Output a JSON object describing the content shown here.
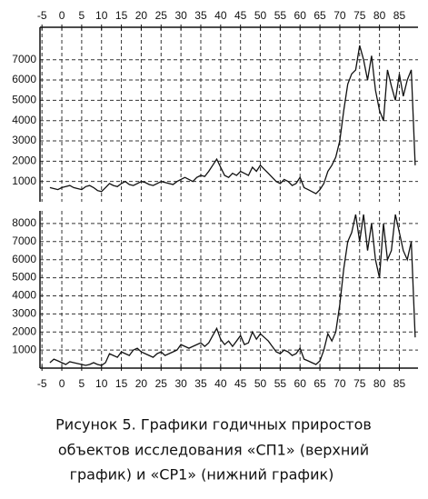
{
  "chart_data": [
    {
      "type": "line",
      "xaxis_position": "top",
      "grid": true,
      "xlim": [
        -5.5,
        89.7
      ],
      "xticks": [
        -5,
        0,
        5,
        10,
        15,
        20,
        25,
        30,
        35,
        40,
        45,
        50,
        55,
        60,
        65,
        70,
        75,
        80,
        85
      ],
      "ylim": [
        0,
        8600
      ],
      "yticks": [
        1000,
        2000,
        3000,
        4000,
        5000,
        6000,
        7000
      ],
      "x": [
        -3,
        -2,
        -1,
        0,
        1,
        2,
        3,
        4,
        5,
        6,
        7,
        8,
        9,
        10,
        11,
        12,
        13,
        14,
        15,
        16,
        17,
        18,
        19,
        20,
        21,
        22,
        23,
        24,
        25,
        26,
        27,
        28,
        29,
        30,
        31,
        32,
        33,
        34,
        35,
        36,
        37,
        38,
        39,
        40,
        41,
        42,
        43,
        44,
        45,
        46,
        47,
        48,
        49,
        50,
        51,
        52,
        53,
        54,
        55,
        56,
        57,
        58,
        59,
        60,
        61,
        62,
        63,
        64,
        65,
        66,
        67,
        68,
        69,
        70,
        71,
        72,
        73,
        74,
        75,
        76,
        77,
        78,
        79,
        80,
        81,
        82,
        83,
        84,
        85,
        86,
        87,
        88,
        89
      ],
      "series": [
        {
          "color": "#111111",
          "values": [
            700,
            650,
            600,
            700,
            750,
            800,
            700,
            650,
            600,
            750,
            800,
            700,
            550,
            500,
            700,
            900,
            800,
            750,
            900,
            1000,
            850,
            800,
            900,
            1000,
            950,
            850,
            800,
            900,
            1000,
            950,
            900,
            850,
            1000,
            1100,
            1200,
            1100,
            1000,
            1200,
            1300,
            1250,
            1500,
            1800,
            2100,
            1700,
            1300,
            1200,
            1400,
            1300,
            1500,
            1400,
            1300,
            1700,
            1500,
            1800,
            1600,
            1400,
            1200,
            1000,
            900,
            1100,
            1000,
            800,
            900,
            1200,
            700,
            600,
            500,
            400,
            600,
            900,
            1500,
            1800,
            2200,
            3000,
            4500,
            5800,
            6300,
            6500,
            7700,
            7000,
            6000,
            7200,
            5500,
            4500,
            4000,
            6500,
            5700,
            5000,
            6300,
            5200,
            6000,
            6500,
            1800
          ]
        }
      ]
    },
    {
      "type": "line",
      "xaxis_position": "bottom",
      "grid": true,
      "xlim": [
        -5.5,
        89.7
      ],
      "xticks": [
        -5,
        0,
        5,
        10,
        15,
        20,
        25,
        30,
        35,
        40,
        45,
        50,
        55,
        60,
        65,
        70,
        75,
        80,
        85
      ],
      "ylim": [
        0,
        8700
      ],
      "yticks": [
        1000,
        2000,
        3000,
        4000,
        5000,
        6000,
        7000,
        8000
      ],
      "x": [
        -3,
        -2,
        -1,
        0,
        1,
        2,
        3,
        4,
        5,
        6,
        7,
        8,
        9,
        10,
        11,
        12,
        13,
        14,
        15,
        16,
        17,
        18,
        19,
        20,
        21,
        22,
        23,
        24,
        25,
        26,
        27,
        28,
        29,
        30,
        31,
        32,
        33,
        34,
        35,
        36,
        37,
        38,
        39,
        40,
        41,
        42,
        43,
        44,
        45,
        46,
        47,
        48,
        49,
        50,
        51,
        52,
        53,
        54,
        55,
        56,
        57,
        58,
        59,
        60,
        61,
        62,
        63,
        64,
        65,
        66,
        67,
        68,
        69,
        70,
        71,
        72,
        73,
        74,
        75,
        76,
        77,
        78,
        79,
        80,
        81,
        82,
        83,
        84,
        85,
        86,
        87,
        88,
        89
      ],
      "series": [
        {
          "color": "#111111",
          "values": [
            300,
            500,
            400,
            300,
            200,
            350,
            300,
            250,
            200,
            150,
            200,
            300,
            200,
            150,
            300,
            800,
            700,
            600,
            900,
            800,
            700,
            1000,
            1100,
            900,
            800,
            700,
            600,
            800,
            900,
            700,
            800,
            900,
            1000,
            1300,
            1200,
            1100,
            1200,
            1300,
            1400,
            1200,
            1400,
            1800,
            2200,
            1600,
            1300,
            1500,
            1200,
            1500,
            1800,
            1300,
            1400,
            2000,
            1600,
            1900,
            1700,
            1500,
            1200,
            900,
            800,
            1000,
            900,
            700,
            800,
            1100,
            500,
            400,
            300,
            200,
            400,
            1000,
            1900,
            1500,
            2000,
            3500,
            5500,
            7000,
            7500,
            8500,
            7000,
            8500,
            6500,
            8000,
            6000,
            5000,
            8000,
            6000,
            6500,
            8500,
            7500,
            6500,
            6000,
            7000,
            1700
          ]
        }
      ]
    }
  ],
  "caption": [
    "Рисунок 5. Графики годичных приростов",
    "объектов исследования «СП1» (верхний",
    "график) и «СР1» (нижний график)"
  ]
}
